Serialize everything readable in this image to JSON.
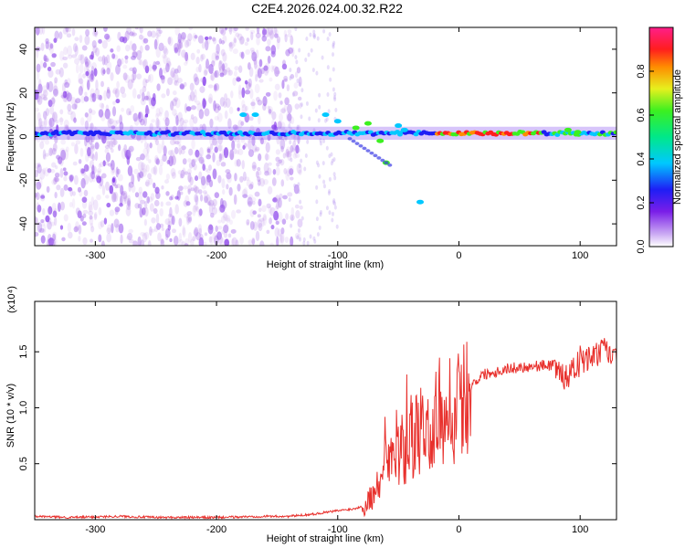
{
  "title": "C2E4.2026.024.00.32.R22",
  "chart_data": [
    {
      "type": "heatmap",
      "xlabel": "Height of straight line (km)",
      "ylabel": "Frequency (Hz)",
      "xlim": [
        -350,
        130
      ],
      "ylim": [
        -50,
        50
      ],
      "xticks": [
        -300,
        -200,
        -100,
        0,
        100
      ],
      "yticks": [
        -40,
        -20,
        0,
        20,
        40
      ],
      "xtick_labels": [
        "-300",
        "-200",
        "-100",
        "0",
        "100"
      ],
      "ytick_labels": [
        "-40",
        "-20",
        "0",
        "20",
        "40"
      ],
      "colorbar": {
        "label": "Normalized spectral amplitude",
        "range": [
          0,
          1
        ],
        "ticks": [
          0.0,
          0.2,
          0.4,
          0.6,
          0.8
        ],
        "tick_labels": [
          "0.0",
          "0.2",
          "0.4",
          "0.6",
          "0.8"
        ],
        "colormap": "rainbow (white-violet-blue-cyan-green-yellow-red-magenta)"
      },
      "main_tone_frequency_hz": 1.5
    },
    {
      "type": "line",
      "xlabel": "Height of straight line (km)",
      "ylabel": "SNR (10 * v/v)",
      "yscale_label": "(x10⁴)",
      "xlim": [
        -350,
        130
      ],
      "ylim": [
        0,
        1.95
      ],
      "xticks": [
        -300,
        -200,
        -100,
        0,
        100
      ],
      "yticks": [
        0.5,
        1.0,
        1.5
      ],
      "xtick_labels": [
        "-300",
        "-200",
        "-100",
        "0",
        "100"
      ],
      "ytick_labels": [
        "0.5",
        "1.0",
        "1.5"
      ],
      "color": "#e8302c",
      "series": [
        {
          "x": [
            -350,
            -320,
            -280,
            -250,
            -200,
            -160,
            -140,
            -120,
            -100,
            -85,
            -75,
            -65,
            -58,
            -52,
            -45,
            -38,
            -30,
            -25,
            -20,
            -15,
            -10,
            -5,
            0,
            5,
            10,
            15,
            20,
            30,
            40,
            50,
            60,
            70,
            80,
            85,
            90,
            95,
            100,
            105,
            110,
            115,
            120,
            125,
            130
          ],
          "y": [
            0.03,
            0.02,
            0.03,
            0.02,
            0.02,
            0.03,
            0.03,
            0.05,
            0.08,
            0.1,
            0.15,
            0.3,
            0.5,
            0.55,
            0.6,
            0.7,
            0.8,
            0.75,
            0.9,
            0.85,
            1.0,
            0.95,
            1.05,
            1.1,
            1.2,
            1.25,
            1.3,
            1.32,
            1.35,
            1.36,
            1.37,
            1.38,
            1.38,
            1.3,
            1.25,
            1.35,
            1.4,
            1.42,
            1.45,
            1.48,
            1.52,
            1.47,
            1.42
          ]
        }
      ]
    }
  ]
}
